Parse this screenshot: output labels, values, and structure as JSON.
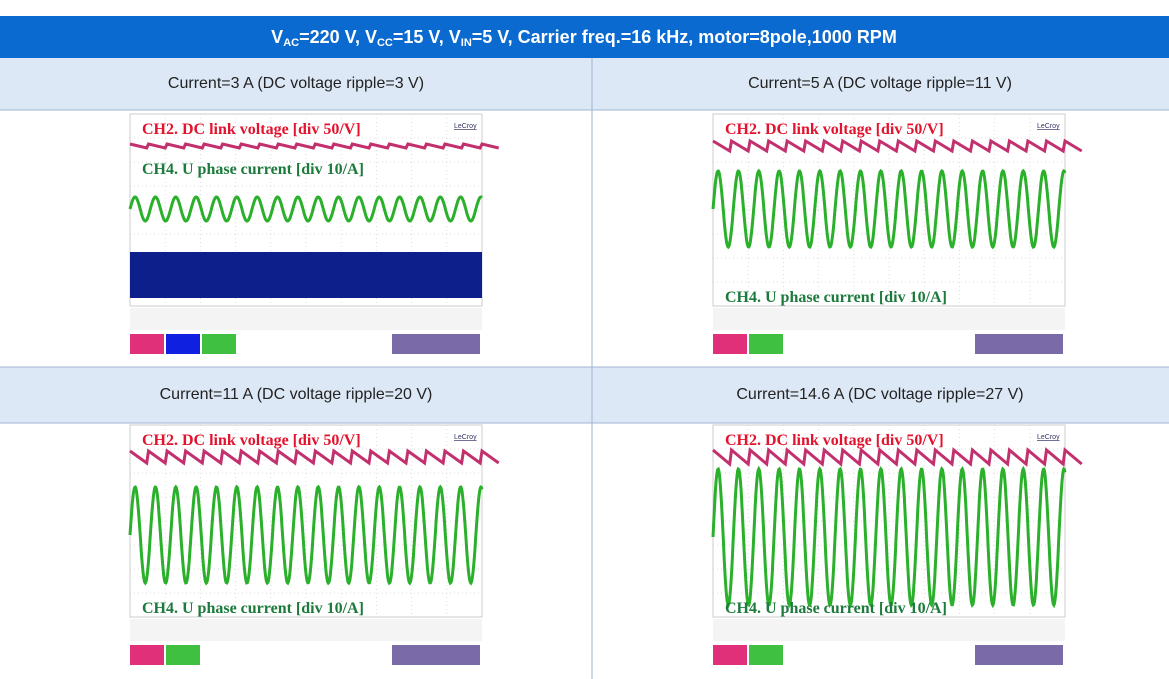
{
  "header": {
    "parts": [
      {
        "text": "V",
        "sub": "AC"
      },
      {
        "text": "=220 V, V",
        "sub": "CC"
      },
      {
        "text": "=15 V, V",
        "sub": "IN"
      },
      {
        "text": "=5 V, Carrier freq.=16 kHz, motor=8pole,1000 RPM"
      }
    ]
  },
  "panels": [
    {
      "caption": "Current=3 A (DC voltage ripple=3 V)",
      "ch2_label": "CH2. DC link voltage [div 50/V]",
      "ch4_label": "CH4. U phase current [div 10/A]",
      "brand": "LeCroy"
    },
    {
      "caption": "Current=5 A (DC voltage ripple=11 V)",
      "ch2_label": "CH2. DC link voltage [div 50/V]",
      "ch4_label": "CH4. U phase current [div 10/A]",
      "brand": "LeCroy"
    },
    {
      "caption": "Current=11 A (DC voltage ripple=20 V)",
      "ch2_label": "CH2. DC link voltage [div 50/V]",
      "ch4_label": "CH4. U phase current [div 10/A]",
      "brand": "LeCroy"
    },
    {
      "caption": "Current=14.6 A (DC voltage ripple=27 V)",
      "ch2_label": "CH2. DC link voltage [div 50/V]",
      "ch4_label": "CH4. U phase current [div 10/A]",
      "brand": "LeCroy"
    }
  ]
}
